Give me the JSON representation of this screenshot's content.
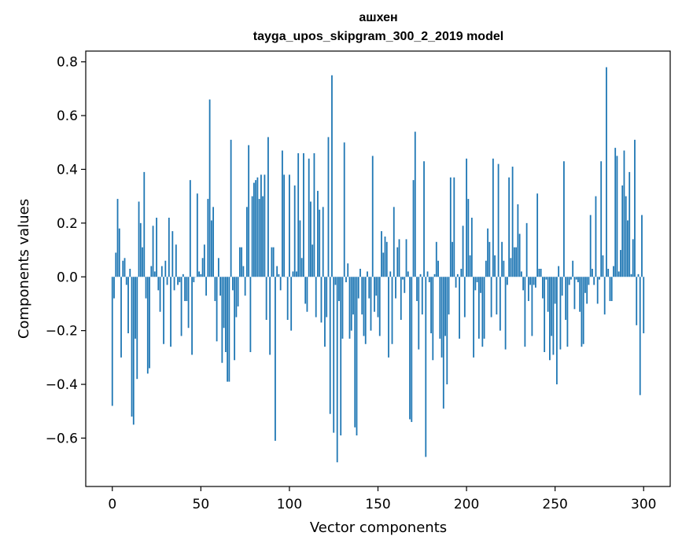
{
  "chart_data": {
    "type": "bar",
    "title": "ашхен",
    "subtitle": "tayga_upos_skipgram_300_2_2019 model",
    "xlabel": "Vector components",
    "ylabel": "Components values",
    "xlim": [
      -15,
      315
    ],
    "ylim": [
      -0.78,
      0.84
    ],
    "xticks": [
      0,
      50,
      100,
      150,
      200,
      250,
      300
    ],
    "yticks": [
      -0.6,
      -0.4,
      -0.2,
      0.0,
      0.2,
      0.4,
      0.6,
      0.8
    ],
    "ytick_labels": [
      "−0.6",
      "−0.4",
      "−0.2",
      "0.0",
      "0.2",
      "0.4",
      "0.6",
      "0.8"
    ],
    "xtick_labels": [
      "0",
      "50",
      "100",
      "150",
      "200",
      "250",
      "300"
    ],
    "grid": false,
    "bar_color": "#1f77b4",
    "x_start": 0,
    "values": [
      -0.48,
      -0.08,
      0.09,
      0.29,
      0.18,
      -0.3,
      0.06,
      0.07,
      -0.03,
      -0.21,
      0.03,
      -0.52,
      -0.55,
      -0.23,
      -0.38,
      0.28,
      0.2,
      0.11,
      0.39,
      -0.08,
      -0.36,
      -0.34,
      0.04,
      0.19,
      0.02,
      0.22,
      -0.05,
      -0.13,
      0.04,
      -0.25,
      0.06,
      -0.03,
      0.22,
      -0.26,
      0.17,
      -0.05,
      0.12,
      -0.03,
      -0.02,
      -0.22,
      0.01,
      -0.09,
      -0.09,
      -0.19,
      0.36,
      -0.29,
      -0.02,
      0.0,
      0.31,
      0.02,
      0.01,
      0.07,
      0.12,
      -0.07,
      0.29,
      0.66,
      0.21,
      0.26,
      -0.09,
      -0.24,
      0.07,
      -0.07,
      -0.32,
      -0.19,
      -0.28,
      -0.39,
      -0.39,
      0.51,
      -0.05,
      -0.31,
      -0.15,
      -0.11,
      0.11,
      0.11,
      0.04,
      -0.07,
      0.26,
      0.49,
      -0.28,
      0.3,
      0.35,
      0.36,
      0.37,
      0.29,
      0.38,
      0.3,
      0.38,
      -0.16,
      0.52,
      -0.29,
      0.11,
      0.11,
      -0.61,
      0.04,
      0.01,
      -0.05,
      0.47,
      0.38,
      0.0,
      -0.16,
      0.38,
      -0.2,
      0.02,
      0.34,
      0.02,
      0.46,
      0.21,
      0.07,
      0.46,
      -0.1,
      -0.13,
      0.44,
      0.28,
      0.12,
      0.46,
      -0.15,
      0.32,
      0.25,
      -0.17,
      0.26,
      -0.26,
      -0.15,
      0.52,
      -0.51,
      0.75,
      -0.58,
      -0.03,
      -0.69,
      -0.09,
      -0.59,
      -0.23,
      0.5,
      -0.02,
      0.05,
      -0.23,
      -0.2,
      -0.14,
      -0.56,
      -0.59,
      -0.08,
      0.03,
      -0.14,
      -0.22,
      -0.25,
      0.02,
      -0.08,
      -0.2,
      0.45,
      -0.13,
      -0.07,
      -0.15,
      -0.22,
      0.17,
      0.09,
      0.15,
      0.13,
      -0.3,
      0.02,
      -0.25,
      0.26,
      -0.08,
      0.11,
      0.14,
      -0.16,
      -0.01,
      -0.06,
      0.14,
      0.02,
      -0.53,
      -0.54,
      0.36,
      0.54,
      -0.09,
      -0.27,
      0.01,
      -0.14,
      0.43,
      -0.67,
      0.02,
      -0.02,
      -0.21,
      -0.31,
      0.01,
      0.13,
      0.06,
      -0.23,
      -0.3,
      -0.49,
      -0.22,
      -0.4,
      -0.14,
      0.37,
      0.13,
      0.37,
      -0.04,
      0.01,
      -0.23,
      0.03,
      0.19,
      -0.15,
      0.44,
      0.29,
      0.08,
      0.22,
      -0.3,
      -0.05,
      -0.02,
      -0.23,
      -0.06,
      -0.26,
      -0.23,
      0.06,
      0.18,
      0.13,
      -0.15,
      0.44,
      0.08,
      -0.14,
      0.42,
      -0.2,
      0.13,
      0.06,
      -0.27,
      -0.03,
      0.37,
      0.07,
      0.41,
      0.11,
      0.11,
      0.27,
      0.16,
      0.02,
      -0.05,
      -0.26,
      0.2,
      -0.09,
      -0.03,
      -0.22,
      -0.03,
      -0.04,
      0.31,
      0.03,
      0.03,
      -0.08,
      -0.28,
      -0.01,
      -0.13,
      -0.31,
      -0.22,
      -0.29,
      -0.1,
      -0.4,
      0.04,
      -0.27,
      -0.07,
      0.43,
      -0.16,
      -0.26,
      -0.03,
      -0.01,
      0.06,
      -0.12,
      -0.01,
      -0.02,
      -0.13,
      -0.26,
      -0.25,
      -0.06,
      -0.1,
      -0.03,
      0.23,
      0.03,
      -0.03,
      0.3,
      -0.1,
      -0.01,
      0.43,
      0.08,
      -0.14,
      0.78,
      0.03,
      -0.09,
      -0.09,
      0.04,
      0.48,
      0.45,
      0.02,
      0.1,
      0.34,
      0.47,
      0.3,
      0.21,
      0.39,
      0.01,
      0.14,
      0.51,
      -0.18,
      0.01,
      -0.44,
      0.23,
      -0.21
    ]
  }
}
